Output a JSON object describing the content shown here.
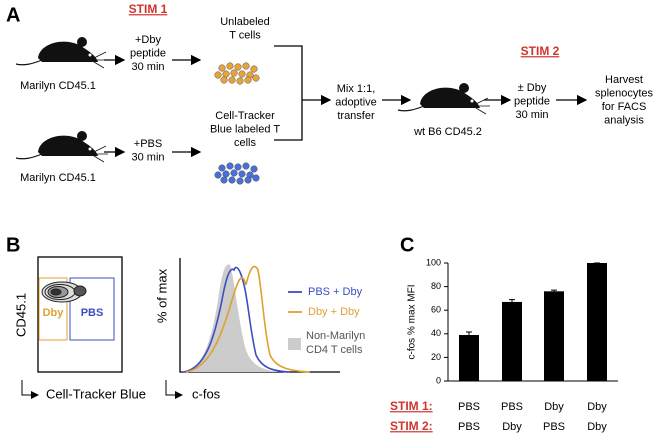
{
  "panel_a": {
    "label": "A",
    "stim1": "STIM 1",
    "stim2": "STIM 2",
    "mouse_top": "Marilyn CD45.1",
    "mouse_bottom": "Marilyn CD45.1",
    "mouse_recipient": "wt B6 CD45.2",
    "treat_top": [
      "+Dby",
      "peptide",
      "30 min"
    ],
    "treat_bottom": [
      "+PBS",
      "30 min"
    ],
    "cells_top": [
      "Unlabeled",
      "T cells"
    ],
    "cells_bottom": [
      "Cell-Tracker",
      "Blue labeled T",
      "cells"
    ],
    "mix": [
      "Mix 1:1,",
      "adoptive",
      "transfer"
    ],
    "restim": [
      "± Dby",
      "peptide",
      "30 min"
    ],
    "harvest": [
      "Harvest",
      "splenocytes",
      "for FACS",
      "analysis"
    ]
  },
  "panel_b": {
    "label": "B",
    "dot_y_label": "CD45.1",
    "dot_x_label": "Cell-Tracker Blue",
    "gate_dby": "Dby",
    "gate_pbs": "PBS",
    "hist_y_label": "% of max",
    "hist_x_label": "c-fos",
    "legend_blue": "PBS + Dby",
    "legend_orange": "Dby + Dby",
    "legend_gray": [
      "Non-Marilyn",
      "CD4 T cells"
    ]
  },
  "chart_data": {
    "type": "bar",
    "label": "C",
    "ylabel": "c-fos % max MFI",
    "values": [
      39,
      67,
      76,
      100
    ],
    "errors": [
      2.5,
      2,
      1,
      0
    ],
    "color": "#000000",
    "ylim": [
      0,
      100
    ],
    "yticks": [
      0,
      20,
      40,
      60,
      80,
      100
    ],
    "category_rows": [
      {
        "label": "STIM 1:",
        "values": [
          "PBS",
          "PBS",
          "Dby",
          "Dby"
        ]
      },
      {
        "label": "STIM 2:",
        "values": [
          "PBS",
          "Dby",
          "PBS",
          "Dby"
        ]
      }
    ]
  }
}
